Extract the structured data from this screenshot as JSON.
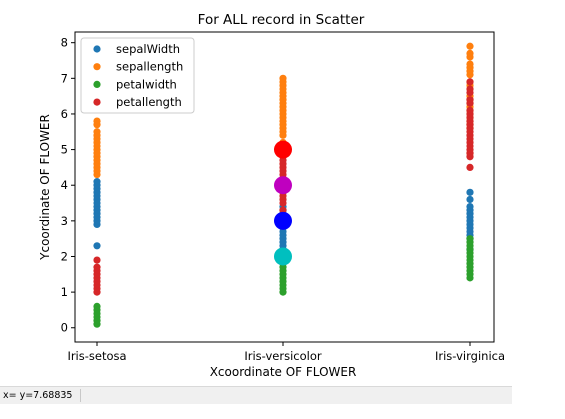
{
  "chart_data": {
    "type": "scatter",
    "title": "For ALL record in Scatter",
    "xlabel": "Xcoordinate OF FLOWER",
    "ylabel": "Ycoordinate OF FLOWER",
    "categories": [
      "Iris-setosa",
      "Iris-versicolor",
      "Iris-virginica"
    ],
    "ylim": [
      -0.4,
      8.3
    ],
    "yticks": [
      0,
      1,
      2,
      3,
      4,
      5,
      6,
      7,
      8
    ],
    "legend_position": "top-left",
    "grid": false,
    "series": [
      {
        "name": "sepalWidth",
        "color": "#1f77b4",
        "points": [
          {
            "x": "Iris-setosa",
            "y": [
              2.3,
              2.9,
              3.0,
              3.1,
              3.2,
              3.3,
              3.4,
              3.5,
              3.6,
              3.7,
              3.8,
              3.9,
              4.0,
              4.1
            ]
          },
          {
            "x": "Iris-versicolor",
            "y": [
              2.0,
              2.2,
              2.3,
              2.4,
              2.5,
              2.6,
              2.7,
              2.8,
              2.9,
              3.0,
              3.1,
              3.2,
              3.3,
              3.4
            ]
          },
          {
            "x": "Iris-virginica",
            "y": [
              2.2,
              2.5,
              2.6,
              2.7,
              2.8,
              2.9,
              3.0,
              3.1,
              3.2,
              3.3,
              3.4,
              3.6,
              3.8
            ]
          }
        ]
      },
      {
        "name": "sepallength",
        "color": "#ff7f0e",
        "points": [
          {
            "x": "Iris-setosa",
            "y": [
              4.3,
              4.4,
              4.5,
              4.6,
              4.7,
              4.8,
              4.9,
              5.0,
              5.1,
              5.2,
              5.3,
              5.4,
              5.5,
              5.7,
              5.8
            ]
          },
          {
            "x": "Iris-versicolor",
            "y": [
              4.9,
              5.0,
              5.1,
              5.2,
              5.4,
              5.5,
              5.6,
              5.7,
              5.8,
              5.9,
              6.0,
              6.1,
              6.2,
              6.3,
              6.4,
              6.5,
              6.6,
              6.7,
              6.8,
              6.9,
              7.0
            ]
          },
          {
            "x": "Iris-virginica",
            "y": [
              4.9,
              5.6,
              5.7,
              5.8,
              5.9,
              6.0,
              6.1,
              6.2,
              6.3,
              6.4,
              6.5,
              6.7,
              6.8,
              6.9,
              7.1,
              7.2,
              7.3,
              7.4,
              7.6,
              7.7,
              7.9
            ]
          }
        ]
      },
      {
        "name": "petalwidth",
        "color": "#2ca02c",
        "points": [
          {
            "x": "Iris-setosa",
            "y": [
              0.1,
              0.2,
              0.3,
              0.4,
              0.5,
              0.6
            ]
          },
          {
            "x": "Iris-versicolor",
            "y": [
              1.0,
              1.1,
              1.2,
              1.3,
              1.4,
              1.5,
              1.6,
              1.7,
              1.8
            ]
          },
          {
            "x": "Iris-virginica",
            "y": [
              1.4,
              1.5,
              1.6,
              1.7,
              1.8,
              1.9,
              2.0,
              2.1,
              2.2,
              2.3,
              2.4,
              2.5
            ]
          }
        ]
      },
      {
        "name": "petallength",
        "color": "#d62728",
        "points": [
          {
            "x": "Iris-setosa",
            "y": [
              1.0,
              1.1,
              1.2,
              1.3,
              1.4,
              1.5,
              1.6,
              1.7,
              1.9
            ]
          },
          {
            "x": "Iris-versicolor",
            "y": [
              3.0,
              3.3,
              3.5,
              3.6,
              3.7,
              3.8,
              3.9,
              4.0,
              4.1,
              4.2,
              4.3,
              4.4,
              4.5,
              4.6,
              4.7,
              4.8,
              4.9,
              5.0,
              5.1
            ]
          },
          {
            "x": "Iris-virginica",
            "y": [
              4.5,
              4.8,
              4.9,
              5.0,
              5.1,
              5.2,
              5.3,
              5.4,
              5.5,
              5.6,
              5.7,
              5.8,
              5.9,
              6.0,
              6.1,
              6.3,
              6.4,
              6.6,
              6.7,
              6.9
            ]
          }
        ]
      }
    ],
    "highlights": [
      {
        "x": "Iris-versicolor",
        "y": 2,
        "color": "#00bfbf"
      },
      {
        "x": "Iris-versicolor",
        "y": 3,
        "color": "#0000ff"
      },
      {
        "x": "Iris-versicolor",
        "y": 4,
        "color": "#bf00bf"
      },
      {
        "x": "Iris-versicolor",
        "y": 5,
        "color": "#ff0000"
      }
    ]
  },
  "status_bar": {
    "coordinate_text": "x= y=7.68835"
  }
}
